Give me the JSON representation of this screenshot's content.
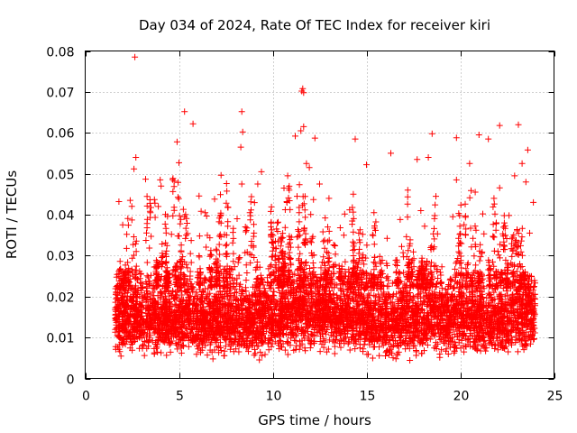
{
  "chart_data": {
    "type": "scatter",
    "title": "Day 034 of 2024, Rate Of TEC Index for receiver kiri",
    "xlabel": "GPS time / hours",
    "ylabel": "ROTI / TECUs",
    "xlim": [
      0,
      25
    ],
    "ylim": [
      0,
      0.08
    ],
    "xticks": [
      0,
      5,
      10,
      15,
      20,
      25
    ],
    "yticks": [
      0,
      0.01,
      0.02,
      0.03,
      0.04,
      0.05,
      0.06,
      0.07,
      0.08
    ],
    "xtick_labels": [
      "0",
      "5",
      "10",
      "15",
      "20",
      "25"
    ],
    "ytick_labels": [
      "0",
      "0.01",
      "0.02",
      "0.03",
      "0.04",
      "0.05",
      "0.06",
      "0.07",
      "0.08"
    ],
    "grid": true,
    "marker": "+",
    "color": "#ff0000",
    "data_range_x": [
      1.6,
      24.0
    ],
    "series": [
      {
        "name": "ROTI",
        "points": [
          [
            2.65,
            0.0785
          ],
          [
            11.6,
            0.0708
          ],
          [
            11.55,
            0.0702
          ],
          [
            11.65,
            0.0698
          ],
          [
            5.3,
            0.0652
          ],
          [
            8.35,
            0.0652
          ],
          [
            5.75,
            0.0622
          ],
          [
            22.1,
            0.0618
          ],
          [
            23.1,
            0.062
          ],
          [
            11.65,
            0.0615
          ],
          [
            11.5,
            0.0605
          ],
          [
            8.4,
            0.0602
          ],
          [
            18.5,
            0.0598
          ],
          [
            21.0,
            0.0595
          ],
          [
            11.2,
            0.0592
          ],
          [
            19.8,
            0.0588
          ],
          [
            12.25,
            0.0587
          ],
          [
            14.4,
            0.0585
          ],
          [
            4.9,
            0.0578
          ],
          [
            21.5,
            0.0585
          ],
          [
            8.3,
            0.0565
          ],
          [
            23.6,
            0.0558
          ],
          [
            16.3,
            0.055
          ],
          [
            2.7,
            0.054
          ],
          [
            18.3,
            0.054
          ],
          [
            5.0,
            0.0527
          ],
          [
            11.8,
            0.0525
          ],
          [
            15.0,
            0.0522
          ],
          [
            17.7,
            0.0535
          ],
          [
            20.5,
            0.0525
          ],
          [
            23.3,
            0.0525
          ],
          [
            2.6,
            0.0512
          ],
          [
            9.4,
            0.0505
          ],
          [
            11.95,
            0.0515
          ],
          [
            10.8,
            0.0495
          ],
          [
            22.9,
            0.0495
          ],
          [
            4.0,
            0.0485
          ],
          [
            8.35,
            0.0475
          ],
          [
            9.2,
            0.0475
          ],
          [
            12.5,
            0.0475
          ],
          [
            19.8,
            0.0485
          ],
          [
            23.5,
            0.048
          ],
          [
            4.05,
            0.047
          ],
          [
            10.6,
            0.0465
          ],
          [
            17.2,
            0.046
          ],
          [
            20.8,
            0.0455
          ],
          [
            1.8,
            0.0432
          ],
          [
            2.4,
            0.0435
          ],
          [
            6.9,
            0.0438
          ],
          [
            11.3,
            0.0445
          ],
          [
            13.0,
            0.044
          ],
          [
            18.7,
            0.0445
          ],
          [
            21.8,
            0.044
          ],
          [
            23.9,
            0.043
          ],
          [
            3.9,
            0.042
          ],
          [
            6.4,
            0.0405
          ],
          [
            9.9,
            0.0408
          ],
          [
            14.1,
            0.0412
          ],
          [
            15.4,
            0.0405
          ],
          [
            17.9,
            0.041
          ],
          [
            21.2,
            0.0402
          ],
          [
            5.3,
            0.0395
          ],
          [
            8.1,
            0.039
          ],
          [
            12.8,
            0.0392
          ],
          [
            16.8,
            0.0388
          ],
          [
            19.6,
            0.0395
          ],
          [
            22.6,
            0.0398
          ],
          [
            2.0,
            0.0375
          ],
          [
            3.3,
            0.0368
          ],
          [
            7.6,
            0.0372
          ],
          [
            10.2,
            0.0365
          ],
          [
            13.6,
            0.0368
          ],
          [
            18.1,
            0.0372
          ],
          [
            20.3,
            0.0365
          ],
          [
            4.6,
            0.0352
          ],
          [
            6.1,
            0.0348
          ],
          [
            9.0,
            0.0355
          ],
          [
            11.0,
            0.0345
          ],
          [
            14.8,
            0.0352
          ],
          [
            16.1,
            0.0342
          ],
          [
            22.3,
            0.0348
          ],
          [
            23.7,
            0.0355
          ]
        ],
        "envelope": [
          [
            1.6,
            0.004,
            0.028
          ],
          [
            2.0,
            0.004,
            0.03
          ],
          [
            2.5,
            0.004,
            0.028
          ],
          [
            3.0,
            0.004,
            0.026
          ],
          [
            3.5,
            0.004,
            0.026
          ],
          [
            4.0,
            0.004,
            0.026
          ],
          [
            4.5,
            0.004,
            0.025
          ],
          [
            5.0,
            0.004,
            0.026
          ],
          [
            5.5,
            0.004,
            0.028
          ],
          [
            6.0,
            0.004,
            0.026
          ],
          [
            6.5,
            0.004,
            0.025
          ],
          [
            7.0,
            0.004,
            0.027
          ],
          [
            7.5,
            0.004,
            0.026
          ],
          [
            8.0,
            0.004,
            0.026
          ],
          [
            8.5,
            0.004,
            0.027
          ],
          [
            9.0,
            0.004,
            0.026
          ],
          [
            9.5,
            0.004,
            0.029
          ],
          [
            10.0,
            0.005,
            0.028
          ],
          [
            10.5,
            0.005,
            0.028
          ],
          [
            11.0,
            0.005,
            0.03
          ],
          [
            11.5,
            0.005,
            0.031
          ],
          [
            12.0,
            0.005,
            0.03
          ],
          [
            12.5,
            0.005,
            0.028
          ],
          [
            13.0,
            0.005,
            0.027
          ],
          [
            13.5,
            0.005,
            0.027
          ],
          [
            14.0,
            0.005,
            0.027
          ],
          [
            14.5,
            0.005,
            0.026
          ],
          [
            15.0,
            0.004,
            0.026
          ],
          [
            15.5,
            0.004,
            0.026
          ],
          [
            16.0,
            0.004,
            0.025
          ],
          [
            16.5,
            0.004,
            0.025
          ],
          [
            17.0,
            0.004,
            0.026
          ],
          [
            17.5,
            0.004,
            0.026
          ],
          [
            18.0,
            0.004,
            0.028
          ],
          [
            18.5,
            0.004,
            0.03
          ],
          [
            19.0,
            0.004,
            0.028
          ],
          [
            19.5,
            0.004,
            0.027
          ],
          [
            20.0,
            0.004,
            0.027
          ],
          [
            20.5,
            0.004,
            0.028
          ],
          [
            21.0,
            0.004,
            0.027
          ],
          [
            21.5,
            0.004,
            0.027
          ],
          [
            22.0,
            0.004,
            0.026
          ],
          [
            22.5,
            0.004,
            0.027
          ],
          [
            23.0,
            0.004,
            0.03
          ],
          [
            23.5,
            0.004,
            0.03
          ],
          [
            24.0,
            0.004,
            0.028
          ]
        ]
      }
    ]
  }
}
